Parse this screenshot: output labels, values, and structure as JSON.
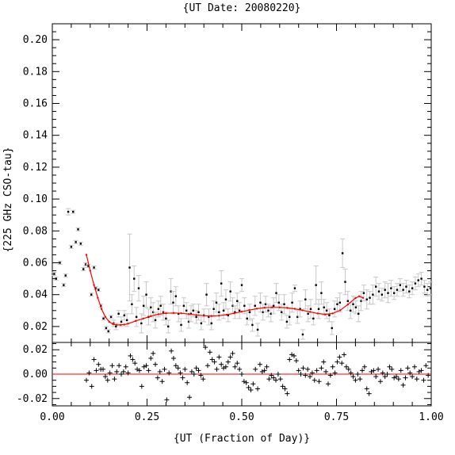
{
  "chart_data": {
    "type": "scatter",
    "title": "{UT Date: 20080220}",
    "xlabel": "{UT (Fraction of Day)}",
    "ylabel": "{225 GHz CSO-tau}",
    "xlim": [
      0,
      1
    ],
    "ylim_main": [
      0.01,
      0.21
    ],
    "ylim_resid": [
      -0.026,
      0.026
    ],
    "x_ticks": [
      "0.00",
      "0.25",
      "0.50",
      "0.75",
      "1.00"
    ],
    "y_ticks_main": [
      "0.02",
      "0.04",
      "0.06",
      "0.08",
      "0.10",
      "0.12",
      "0.14",
      "0.16",
      "0.18",
      "0.20"
    ],
    "y_ticks_resid": [
      "-0.02",
      "0.00",
      "0.02"
    ],
    "fit_color": "#ff0000",
    "errorbar_color": "#c8c8c8",
    "points": [
      [
        0.005,
        0.053,
        0.001
      ],
      [
        0.01,
        0.05,
        0.001
      ],
      [
        0.02,
        0.06,
        0.001
      ],
      [
        0.03,
        0.046,
        0.001
      ],
      [
        0.035,
        0.052,
        0.001
      ],
      [
        0.042,
        0.092,
        0.002
      ],
      [
        0.05,
        0.07,
        0.001
      ],
      [
        0.055,
        0.092,
        0.001
      ],
      [
        0.062,
        0.073,
        0.001
      ],
      [
        0.068,
        0.081,
        0.001
      ],
      [
        0.075,
        0.072,
        0.001
      ],
      [
        0.082,
        0.056,
        0.001
      ],
      [
        0.088,
        0.059,
        0.001
      ],
      [
        0.095,
        0.058,
        0.001
      ],
      [
        0.103,
        0.04,
        0.001
      ],
      [
        0.11,
        0.057,
        0.001
      ],
      [
        0.115,
        0.044,
        0.001
      ],
      [
        0.122,
        0.043,
        0.001
      ],
      [
        0.128,
        0.033,
        0.001
      ],
      [
        0.135,
        0.025,
        0.001
      ],
      [
        0.142,
        0.019,
        0.001
      ],
      [
        0.148,
        0.017,
        0.001
      ],
      [
        0.155,
        0.026,
        0.001
      ],
      [
        0.162,
        0.022,
        0.002
      ],
      [
        0.168,
        0.02,
        0.002
      ],
      [
        0.175,
        0.028,
        0.002
      ],
      [
        0.182,
        0.023,
        0.003
      ],
      [
        0.19,
        0.027,
        0.003
      ],
      [
        0.197,
        0.024,
        0.004
      ],
      [
        0.204,
        0.057,
        0.021
      ],
      [
        0.21,
        0.034,
        0.006
      ],
      [
        0.216,
        0.05,
        0.008
      ],
      [
        0.222,
        0.026,
        0.006
      ],
      [
        0.228,
        0.044,
        0.008
      ],
      [
        0.235,
        0.022,
        0.006
      ],
      [
        0.241,
        0.033,
        0.006
      ],
      [
        0.248,
        0.04,
        0.008
      ],
      [
        0.254,
        0.026,
        0.005
      ],
      [
        0.26,
        0.032,
        0.006
      ],
      [
        0.266,
        0.029,
        0.006
      ],
      [
        0.272,
        0.024,
        0.005
      ],
      [
        0.28,
        0.031,
        0.005
      ],
      [
        0.286,
        0.033,
        0.006
      ],
      [
        0.293,
        0.029,
        0.005
      ],
      [
        0.3,
        0.025,
        0.004
      ],
      [
        0.306,
        0.02,
        0.004
      ],
      [
        0.313,
        0.042,
        0.008
      ],
      [
        0.319,
        0.035,
        0.007
      ],
      [
        0.326,
        0.039,
        0.006
      ],
      [
        0.333,
        0.028,
        0.005
      ],
      [
        0.34,
        0.021,
        0.004
      ],
      [
        0.347,
        0.033,
        0.005
      ],
      [
        0.354,
        0.03,
        0.005
      ],
      [
        0.36,
        0.023,
        0.004
      ],
      [
        0.366,
        0.028,
        0.005
      ],
      [
        0.372,
        0.03,
        0.004
      ],
      [
        0.38,
        0.026,
        0.004
      ],
      [
        0.386,
        0.029,
        0.005
      ],
      [
        0.393,
        0.022,
        0.004
      ],
      [
        0.4,
        0.027,
        0.004
      ],
      [
        0.407,
        0.04,
        0.007
      ],
      [
        0.413,
        0.026,
        0.005
      ],
      [
        0.42,
        0.022,
        0.004
      ],
      [
        0.426,
        0.031,
        0.005
      ],
      [
        0.433,
        0.035,
        0.006
      ],
      [
        0.44,
        0.029,
        0.005
      ],
      [
        0.446,
        0.047,
        0.008
      ],
      [
        0.452,
        0.03,
        0.005
      ],
      [
        0.458,
        0.037,
        0.006
      ],
      [
        0.464,
        0.027,
        0.004
      ],
      [
        0.47,
        0.042,
        0.006
      ],
      [
        0.476,
        0.033,
        0.005
      ],
      [
        0.482,
        0.029,
        0.004
      ],
      [
        0.488,
        0.036,
        0.005
      ],
      [
        0.494,
        0.03,
        0.005
      ],
      [
        0.5,
        0.046,
        0.004
      ],
      [
        0.507,
        0.033,
        0.005
      ],
      [
        0.514,
        0.025,
        0.004
      ],
      [
        0.521,
        0.029,
        0.005
      ],
      [
        0.528,
        0.021,
        0.004
      ],
      [
        0.535,
        0.033,
        0.006
      ],
      [
        0.542,
        0.018,
        0.004
      ],
      [
        0.549,
        0.035,
        0.006
      ],
      [
        0.556,
        0.029,
        0.005
      ],
      [
        0.563,
        0.034,
        0.005
      ],
      [
        0.57,
        0.03,
        0.004
      ],
      [
        0.577,
        0.028,
        0.005
      ],
      [
        0.584,
        0.033,
        0.005
      ],
      [
        0.591,
        0.041,
        0.006
      ],
      [
        0.598,
        0.035,
        0.005
      ],
      [
        0.605,
        0.029,
        0.005
      ],
      [
        0.612,
        0.034,
        0.006
      ],
      [
        0.619,
        0.023,
        0.004
      ],
      [
        0.626,
        0.026,
        0.005
      ],
      [
        0.633,
        0.035,
        0.006
      ],
      [
        0.64,
        0.044,
        0.002
      ],
      [
        0.647,
        0.026,
        0.004
      ],
      [
        0.654,
        0.031,
        0.005
      ],
      [
        0.661,
        0.015,
        0.003
      ],
      [
        0.668,
        0.037,
        0.006
      ],
      [
        0.675,
        0.028,
        0.005
      ],
      [
        0.682,
        0.031,
        0.006
      ],
      [
        0.689,
        0.025,
        0.004
      ],
      [
        0.696,
        0.046,
        0.012
      ],
      [
        0.703,
        0.031,
        0.006
      ],
      [
        0.71,
        0.041,
        0.007
      ],
      [
        0.717,
        0.032,
        0.005
      ],
      [
        0.724,
        0.03,
        0.005
      ],
      [
        0.731,
        0.027,
        0.004
      ],
      [
        0.738,
        0.019,
        0.004
      ],
      [
        0.745,
        0.031,
        0.005
      ],
      [
        0.752,
        0.034,
        0.004
      ],
      [
        0.759,
        0.035,
        0.006
      ],
      [
        0.766,
        0.066,
        0.009
      ],
      [
        0.773,
        0.048,
        0.008
      ],
      [
        0.78,
        0.036,
        0.006
      ],
      [
        0.787,
        0.03,
        0.005
      ],
      [
        0.794,
        0.034,
        0.005
      ],
      [
        0.801,
        0.032,
        0.004
      ],
      [
        0.808,
        0.028,
        0.005
      ],
      [
        0.815,
        0.036,
        0.006
      ],
      [
        0.822,
        0.041,
        0.005
      ],
      [
        0.83,
        0.037,
        0.006
      ],
      [
        0.838,
        0.038,
        0.004
      ],
      [
        0.846,
        0.04,
        0.006
      ],
      [
        0.854,
        0.045,
        0.006
      ],
      [
        0.862,
        0.042,
        0.005
      ],
      [
        0.87,
        0.04,
        0.004
      ],
      [
        0.878,
        0.043,
        0.005
      ],
      [
        0.886,
        0.041,
        0.006
      ],
      [
        0.894,
        0.044,
        0.005
      ],
      [
        0.902,
        0.041,
        0.004
      ],
      [
        0.91,
        0.043,
        0.004
      ],
      [
        0.918,
        0.046,
        0.004
      ],
      [
        0.926,
        0.043,
        0.004
      ],
      [
        0.934,
        0.045,
        0.004
      ],
      [
        0.942,
        0.042,
        0.004
      ],
      [
        0.95,
        0.044,
        0.004
      ],
      [
        0.958,
        0.047,
        0.004
      ],
      [
        0.966,
        0.049,
        0.004
      ],
      [
        0.974,
        0.05,
        0.004
      ],
      [
        0.982,
        0.045,
        0.004
      ],
      [
        0.99,
        0.043,
        0.004
      ],
      [
        0.998,
        0.044,
        0.004
      ]
    ],
    "fit": {
      "x": [
        0.09,
        0.1,
        0.11,
        0.12,
        0.13,
        0.14,
        0.15,
        0.16,
        0.17,
        0.18,
        0.19,
        0.2,
        0.22,
        0.24,
        0.26,
        0.28,
        0.3,
        0.32,
        0.34,
        0.36,
        0.38,
        0.4,
        0.42,
        0.44,
        0.46,
        0.48,
        0.5,
        0.52,
        0.54,
        0.56,
        0.58,
        0.6,
        0.62,
        0.64,
        0.66,
        0.68,
        0.7,
        0.72,
        0.74,
        0.76,
        0.78,
        0.8,
        0.81,
        0.82
      ],
      "y": [
        0.065,
        0.055,
        0.046,
        0.038,
        0.031,
        0.026,
        0.023,
        0.0215,
        0.021,
        0.021,
        0.0212,
        0.0218,
        0.0235,
        0.025,
        0.0265,
        0.0277,
        0.0283,
        0.0285,
        0.0283,
        0.0278,
        0.0272,
        0.0268,
        0.0266,
        0.0268,
        0.0274,
        0.0283,
        0.0293,
        0.0303,
        0.0312,
        0.0318,
        0.032,
        0.032,
        0.0317,
        0.0311,
        0.0302,
        0.0292,
        0.0282,
        0.0276,
        0.0282,
        0.0302,
        0.0338,
        0.0378,
        0.039,
        0.038
      ]
    },
    "residuals": [
      [
        0.09,
        -0.005
      ],
      [
        0.097,
        0.001
      ],
      [
        0.104,
        -0.01
      ],
      [
        0.11,
        0.012
      ],
      [
        0.116,
        0.003
      ],
      [
        0.122,
        0.008
      ],
      [
        0.128,
        0.004
      ],
      [
        0.134,
        0.004
      ],
      [
        0.14,
        -0.002
      ],
      [
        0.146,
        -0.005
      ],
      [
        0.152,
        0.001
      ],
      [
        0.158,
        0.007
      ],
      [
        0.164,
        -0.004
      ],
      [
        0.17,
        0.002
      ],
      [
        0.176,
        0.007
      ],
      [
        0.182,
        0.0
      ],
      [
        0.188,
        0.002
      ],
      [
        0.194,
        0.006
      ],
      [
        0.2,
        0.001
      ],
      [
        0.206,
        0.015
      ],
      [
        0.212,
        0.012
      ],
      [
        0.218,
        0.009
      ],
      [
        0.224,
        0.004
      ],
      [
        0.23,
        0.003
      ],
      [
        0.236,
        -0.01
      ],
      [
        0.242,
        0.006
      ],
      [
        0.248,
        0.007
      ],
      [
        0.254,
        0.003
      ],
      [
        0.26,
        0.013
      ],
      [
        0.266,
        0.017
      ],
      [
        0.272,
        0.008
      ],
      [
        0.278,
        -0.003
      ],
      [
        0.284,
        0.002
      ],
      [
        0.29,
        -0.006
      ],
      [
        0.296,
        0.004
      ],
      [
        0.302,
        -0.021
      ],
      [
        0.308,
        0.001
      ],
      [
        0.314,
        0.019
      ],
      [
        0.32,
        0.013
      ],
      [
        0.326,
        0.007
      ],
      [
        0.332,
        0.005
      ],
      [
        0.338,
        0.001
      ],
      [
        0.344,
        -0.003
      ],
      [
        0.35,
        0.004
      ],
      [
        0.356,
        -0.007
      ],
      [
        0.362,
        -0.019
      ],
      [
        0.368,
        0.002
      ],
      [
        0.374,
        0.0
      ],
      [
        0.38,
        0.005
      ],
      [
        0.386,
        0.003
      ],
      [
        0.392,
        -0.001
      ],
      [
        0.398,
        -0.004
      ],
      [
        0.404,
        0.022
      ],
      [
        0.41,
        0.007
      ],
      [
        0.416,
        0.018
      ],
      [
        0.422,
        0.012
      ],
      [
        0.428,
        0.01
      ],
      [
        0.434,
        0.004
      ],
      [
        0.44,
        0.014
      ],
      [
        0.446,
        0.008
      ],
      [
        0.452,
        0.005
      ],
      [
        0.458,
        0.006
      ],
      [
        0.464,
        0.01
      ],
      [
        0.47,
        0.014
      ],
      [
        0.476,
        0.017
      ],
      [
        0.482,
        0.006
      ],
      [
        0.488,
        0.009
      ],
      [
        0.494,
        0.004
      ],
      [
        0.5,
        0.0
      ],
      [
        0.506,
        -0.006
      ],
      [
        0.512,
        -0.007
      ],
      [
        0.518,
        -0.011
      ],
      [
        0.524,
        -0.013
      ],
      [
        0.53,
        -0.008
      ],
      [
        0.536,
        0.004
      ],
      [
        0.542,
        -0.012
      ],
      [
        0.548,
        0.008
      ],
      [
        0.554,
        0.002
      ],
      [
        0.56,
        0.003
      ],
      [
        0.566,
        0.006
      ],
      [
        0.572,
        -0.004
      ],
      [
        0.578,
        -0.001
      ],
      [
        0.584,
        -0.003
      ],
      [
        0.59,
        -0.005
      ],
      [
        0.596,
        0.0
      ],
      [
        0.602,
        -0.004
      ],
      [
        0.608,
        -0.01
      ],
      [
        0.614,
        -0.012
      ],
      [
        0.62,
        -0.016
      ],
      [
        0.626,
        0.012
      ],
      [
        0.632,
        0.016
      ],
      [
        0.638,
        0.015
      ],
      [
        0.644,
        0.011
      ],
      [
        0.65,
        0.003
      ],
      [
        0.656,
        0.0
      ],
      [
        0.662,
        0.005
      ],
      [
        0.668,
        -0.001
      ],
      [
        0.674,
        0.004
      ],
      [
        0.68,
        -0.002
      ],
      [
        0.686,
        0.001
      ],
      [
        0.692,
        -0.005
      ],
      [
        0.698,
        0.003
      ],
      [
        0.704,
        -0.006
      ],
      [
        0.71,
        0.005
      ],
      [
        0.716,
        0.01
      ],
      [
        0.722,
        0.002
      ],
      [
        0.728,
        -0.008
      ],
      [
        0.734,
        -0.001
      ],
      [
        0.74,
        0.006
      ],
      [
        0.746,
        0.001
      ],
      [
        0.752,
        0.01
      ],
      [
        0.758,
        0.014
      ],
      [
        0.764,
        0.009
      ],
      [
        0.77,
        0.016
      ],
      [
        0.776,
        0.006
      ],
      [
        0.782,
        0.004
      ],
      [
        0.788,
        0.001
      ],
      [
        0.794,
        -0.002
      ],
      [
        0.8,
        -0.005
      ],
      [
        0.806,
        0.0
      ],
      [
        0.812,
        -0.004
      ],
      [
        0.818,
        0.003
      ],
      [
        0.824,
        0.006
      ],
      [
        0.83,
        -0.012
      ],
      [
        0.836,
        -0.016
      ],
      [
        0.842,
        0.002
      ],
      [
        0.848,
        0.003
      ],
      [
        0.854,
        -0.002
      ],
      [
        0.86,
        0.004
      ],
      [
        0.866,
        -0.006
      ],
      [
        0.872,
        0.001
      ],
      [
        0.878,
        -0.002
      ],
      [
        0.884,
        0.0
      ],
      [
        0.89,
        0.006
      ],
      [
        0.896,
        0.004
      ],
      [
        0.902,
        -0.003
      ],
      [
        0.908,
        -0.002
      ],
      [
        0.914,
        -0.004
      ],
      [
        0.92,
        0.003
      ],
      [
        0.926,
        -0.009
      ],
      [
        0.932,
        -0.003
      ],
      [
        0.938,
        0.005
      ],
      [
        0.944,
        0.001
      ],
      [
        0.95,
        -0.002
      ],
      [
        0.956,
        0.006
      ],
      [
        0.962,
        -0.004
      ],
      [
        0.968,
        0.002
      ],
      [
        0.974,
        0.003
      ],
      [
        0.98,
        -0.005
      ],
      [
        0.986,
        0.007
      ],
      [
        0.992,
        -0.001
      ]
    ]
  }
}
